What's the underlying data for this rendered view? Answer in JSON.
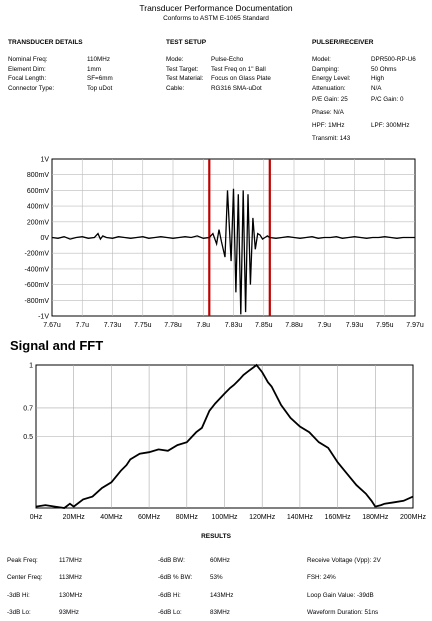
{
  "header": {
    "title": "Transducer Performance Documentation",
    "subtitle": "Conforms to ASTM E-1065 Standard"
  },
  "transducer_details": {
    "heading": "TRANSDUCER DETAILS",
    "rows": [
      {
        "label": "Nominal Freq:",
        "value": "110MHz"
      },
      {
        "label": "Element Dim:",
        "value": "1mm"
      },
      {
        "label": "Focal Length:",
        "value": "SF=6mm"
      },
      {
        "label": "Connector Type:",
        "value": "Top uDot"
      }
    ]
  },
  "test_setup": {
    "heading": "TEST SETUP",
    "rows": [
      {
        "label": "Mode:",
        "value": "Pulse-Echo"
      },
      {
        "label": "Test Target:",
        "value": "Test Freq on 1\" Ball"
      },
      {
        "label": "Test Material:",
        "value": "Focus on Glass Plate"
      },
      {
        "label": "Cable:",
        "value": "RG316 SMA-uDot"
      }
    ]
  },
  "pulser_receiver": {
    "heading": "PULSER/RECEIVER",
    "rows": [
      {
        "label": "Model:",
        "value": "DPR500-RP-U6"
      },
      {
        "label": "Damping:",
        "value": "50 Ohms"
      },
      {
        "label": "Energy Level:",
        "value": "High"
      },
      {
        "label": "Attenuation:",
        "value": "N/A"
      }
    ],
    "pe_gain": "P/E Gain: 25",
    "pc_gain": "P/C Gain: 0",
    "phase": "Phase: N/A",
    "hpf": "HPF: 1MHz",
    "lpf": "LPF: 300MHz",
    "transmit": "Transmit: 143"
  },
  "signal_section_title": "Signal and FFT",
  "chart_data": [
    {
      "type": "line",
      "title": "",
      "xlabel": "",
      "ylabel": "",
      "x_unit": "u",
      "xlim": [
        7.67,
        7.97
      ],
      "ylim": [
        -1,
        1
      ],
      "x_tick_labels": [
        "7.67u",
        "7.7u",
        "7.73u",
        "7.75u",
        "7.78u",
        "7.8u",
        "7.83u",
        "7.85u",
        "7.88u",
        "7.9u",
        "7.93u",
        "7.95u",
        "7.97u"
      ],
      "y_tick_labels": [
        "1V",
        "800mV",
        "600mV",
        "400mV",
        "200mV",
        "0V",
        "-200mV",
        "-400mV",
        "-600mV",
        "-800mV",
        "-1V"
      ],
      "grid": true,
      "markers": [
        7.8,
        7.85
      ],
      "series": [
        {
          "x": [
            7.67,
            7.675,
            7.68,
            7.685,
            7.69,
            7.695,
            7.7,
            7.705,
            7.708,
            7.71,
            7.712,
            7.715,
            7.72,
            7.725,
            7.73,
            7.735,
            7.74,
            7.745,
            7.75,
            7.755,
            7.76,
            7.765,
            7.77,
            7.775,
            7.78,
            7.785,
            7.79,
            7.795,
            7.8,
            7.803,
            7.806,
            7.808,
            7.81,
            7.813,
            7.815,
            7.818,
            7.82,
            7.822,
            7.824,
            7.826,
            7.828,
            7.83,
            7.832,
            7.834,
            7.836,
            7.838,
            7.84,
            7.842,
            7.844,
            7.846,
            7.848,
            7.85,
            7.855,
            7.86,
            7.865,
            7.87,
            7.875,
            7.88,
            7.885,
            7.89,
            7.895,
            7.9,
            7.905,
            7.91,
            7.915,
            7.92,
            7.925,
            7.93,
            7.935,
            7.94,
            7.945,
            7.95,
            7.955,
            7.96,
            7.965,
            7.97
          ],
          "y": [
            0.0,
            -0.01,
            0.01,
            -0.02,
            0.0,
            0.01,
            -0.01,
            0.0,
            0.05,
            -0.02,
            0.02,
            0.0,
            -0.01,
            0.01,
            0.0,
            -0.01,
            0.0,
            0.01,
            -0.01,
            0.0,
            0.01,
            0.0,
            -0.01,
            0.0,
            0.01,
            0.0,
            0.02,
            -0.01,
            0.0,
            0.05,
            -0.08,
            0.1,
            -0.05,
            -0.25,
            0.6,
            -0.3,
            0.62,
            -0.7,
            0.55,
            -0.98,
            0.6,
            -0.95,
            0.55,
            -0.6,
            0.25,
            -0.15,
            0.05,
            0.03,
            -0.02,
            0.0,
            0.02,
            0.0,
            -0.01,
            0.0,
            0.01,
            0.0,
            -0.01,
            0.0,
            0.01,
            -0.01,
            0.0,
            0.0,
            0.01,
            -0.01,
            0.0,
            0.01,
            0.0,
            -0.01,
            0.0,
            0.0,
            0.01,
            0.0,
            -0.01,
            0.0,
            0.0,
            0.0
          ]
        }
      ]
    },
    {
      "type": "line",
      "title": "",
      "xlabel": "",
      "ylabel": "",
      "xlim": [
        0,
        200
      ],
      "ylim": [
        0,
        1
      ],
      "x_tick_labels": [
        "0Hz",
        "20MHz",
        "40MHz",
        "60MHz",
        "80MHz",
        "100MHz",
        "120MHz",
        "140MHz",
        "160MHz",
        "180MHz",
        "200MHz"
      ],
      "y_tick_labels": [
        "1",
        "0.7",
        "0.5"
      ],
      "y_ticks": [
        1,
        0.7,
        0.5
      ],
      "grid": true,
      "series": [
        {
          "x": [
            0,
            5,
            10,
            15,
            18,
            20,
            25,
            30,
            35,
            40,
            45,
            48,
            50,
            55,
            60,
            65,
            70,
            75,
            80,
            85,
            88,
            90,
            92,
            95,
            100,
            103,
            105,
            108,
            110,
            113,
            115,
            117,
            120,
            123,
            125,
            130,
            135,
            140,
            145,
            150,
            155,
            160,
            165,
            170,
            175,
            178,
            180,
            183,
            185,
            190,
            195,
            200
          ],
          "y": [
            0.01,
            0.02,
            0.01,
            0.0,
            0.03,
            0.01,
            0.06,
            0.08,
            0.14,
            0.18,
            0.26,
            0.3,
            0.34,
            0.38,
            0.39,
            0.41,
            0.4,
            0.44,
            0.46,
            0.53,
            0.56,
            0.62,
            0.68,
            0.73,
            0.8,
            0.84,
            0.86,
            0.9,
            0.93,
            0.96,
            0.98,
            1.0,
            0.95,
            0.88,
            0.85,
            0.72,
            0.63,
            0.57,
            0.53,
            0.46,
            0.42,
            0.32,
            0.24,
            0.16,
            0.1,
            0.05,
            0.01,
            0.02,
            0.03,
            0.04,
            0.05,
            0.08
          ]
        }
      ]
    }
  ],
  "results": {
    "heading": "RESULTS",
    "col1": [
      {
        "label": "Peak Freq:",
        "value": "117MHz"
      },
      {
        "label": "Center Freq:",
        "value": "113MHz"
      },
      {
        "label": "-3dB Hi:",
        "value": "130MHz"
      },
      {
        "label": "-3dB Lo:",
        "value": "93MHz"
      }
    ],
    "col2": [
      {
        "label": "-6dB BW:",
        "value": "60MHz"
      },
      {
        "label": "-6dB % BW:",
        "value": "53%"
      },
      {
        "label": "-6dB Hi:",
        "value": "143MHz"
      },
      {
        "label": "-6dB Lo:",
        "value": "83MHz"
      }
    ],
    "col3": [
      "Receive Voltage (Vpp): 2V",
      "FSH: 24%",
      "Loop Gain Value: -39dB",
      "Waveform Duration: 51ns"
    ]
  }
}
